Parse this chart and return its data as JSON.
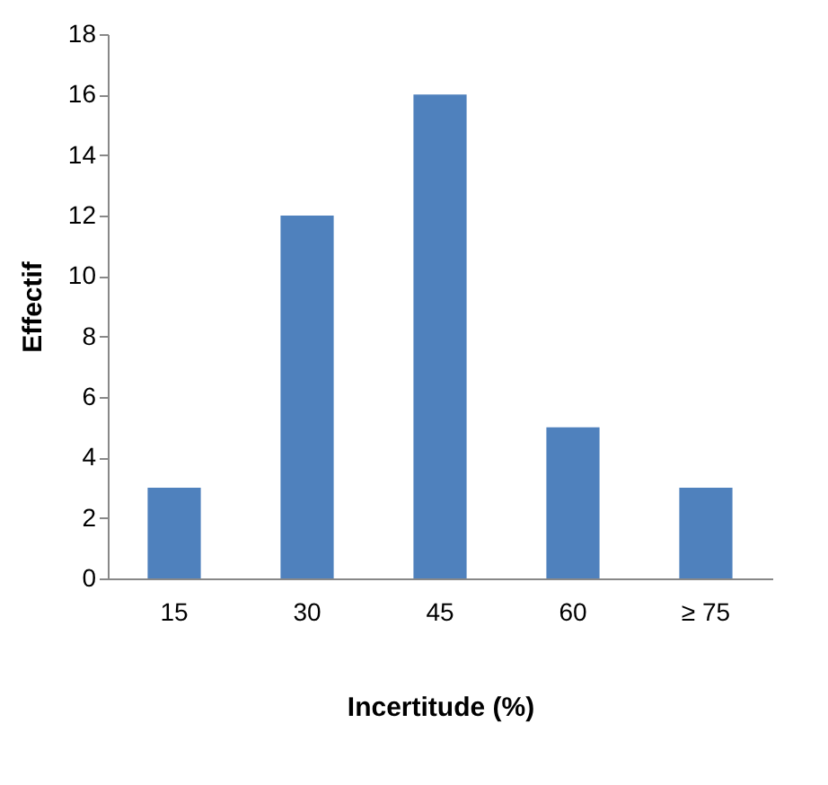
{
  "chart_data": {
    "type": "bar",
    "xlabel": "Incertitude (%)",
    "ylabel": "Effectif",
    "categories": [
      "15",
      "30",
      "45",
      "60",
      "≥ 75"
    ],
    "values": [
      3,
      12,
      16,
      5,
      3
    ],
    "color": "#4f81bd",
    "ylim": [
      0,
      18
    ],
    "yticks": [
      0,
      2,
      4,
      6,
      8,
      10,
      12,
      14,
      16,
      18
    ],
    "grid": false
  }
}
